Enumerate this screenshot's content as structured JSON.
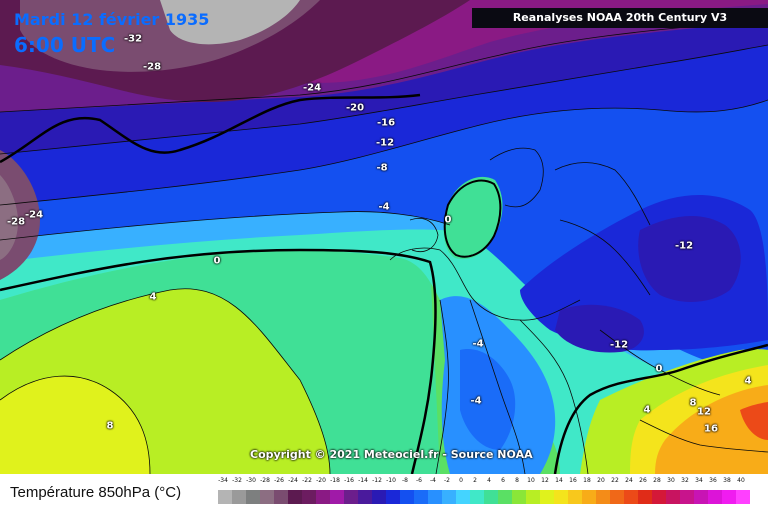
{
  "header": {
    "date": "Mardi 12 février 1935",
    "time": "6:00 UTC"
  },
  "source_label": "Reanalyses NOAA 20th Century V3",
  "copyright": "Copyright © 2021 Meteociel.fr - Source NOAA",
  "legend": {
    "title": "Température 850hPa (°C)",
    "levels": [
      "-34",
      "-32",
      "-30",
      "-28",
      "-26",
      "-24",
      "-22",
      "-20",
      "-18",
      "-16",
      "-14",
      "-12",
      "-10",
      "-8",
      "-6",
      "-4",
      "-2",
      "0",
      "2",
      "4",
      "6",
      "8",
      "10",
      "12",
      "14",
      "16",
      "18",
      "20",
      "22",
      "24",
      "26",
      "28",
      "30",
      "32",
      "34",
      "36",
      "38",
      "40"
    ],
    "colors": [
      "#b4b4b4",
      "#9a9a9a",
      "#7d7f7f",
      "#8c6e82",
      "#7a4c70",
      "#5c1a50",
      "#6c1c60",
      "#8a1a84",
      "#a01aa8",
      "#6c1e8c",
      "#4a1a9c",
      "#2a1ab4",
      "#1a28d8",
      "#1450f0",
      "#1a6cf8",
      "#2890ff",
      "#38b0ff",
      "#44d4ff",
      "#40e8c8",
      "#40e096",
      "#5ae064",
      "#8ae638",
      "#b8ee24",
      "#e0f21c",
      "#f4e41c",
      "#f8c81c",
      "#f8ac18",
      "#f48c18",
      "#f06818",
      "#ec4a18",
      "#e02c18",
      "#d41838",
      "#c81460",
      "#c8148c",
      "#c814b4",
      "#dc14d8",
      "#f01cf0",
      "#ff40ff"
    ]
  },
  "isotherms": [
    {
      "label": "-32"
    },
    {
      "label": "-28"
    },
    {
      "label": "-24"
    },
    {
      "label": "-20"
    },
    {
      "label": "-16"
    },
    {
      "label": "-12"
    },
    {
      "label": "-8"
    },
    {
      "label": "-4"
    },
    {
      "label": "0"
    },
    {
      "label": "4"
    },
    {
      "label": "8"
    },
    {
      "label": "-28"
    },
    {
      "label": "-24"
    },
    {
      "label": "0"
    },
    {
      "label": "-12"
    },
    {
      "label": "-12"
    },
    {
      "label": "-4"
    },
    {
      "label": "-4"
    },
    {
      "label": "0"
    },
    {
      "label": "4"
    },
    {
      "label": "8"
    },
    {
      "label": "12"
    },
    {
      "label": "16"
    },
    {
      "label": "4"
    }
  ]
}
